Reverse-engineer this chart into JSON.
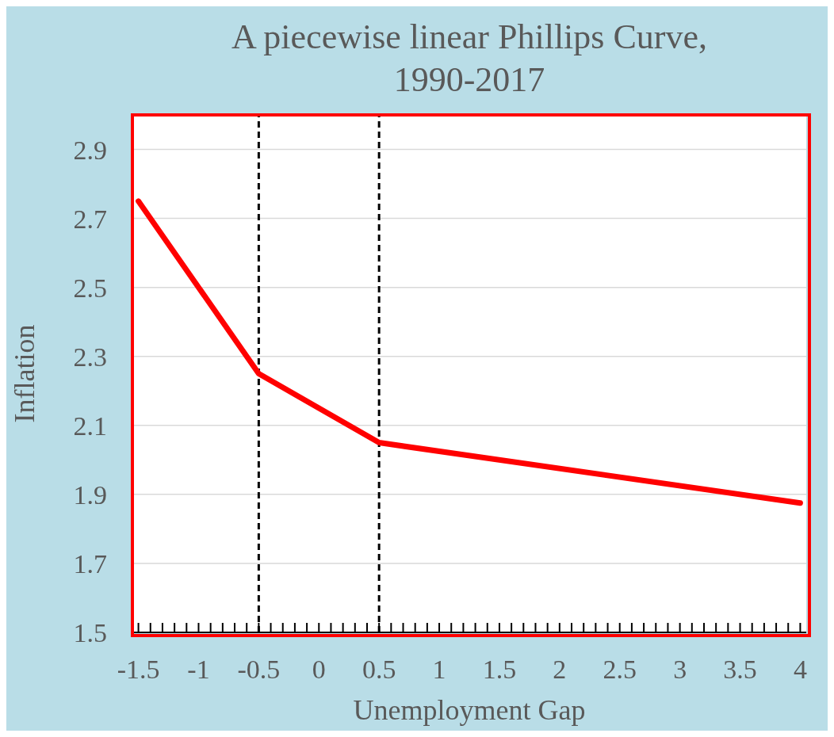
{
  "chart_data": {
    "type": "line",
    "title": "A piecewise linear Phillips Curve,\n1990-2017",
    "xlabel": "Unemployment Gap",
    "ylabel": "Inflation",
    "x": [
      -1.5,
      -0.5,
      0.5,
      4
    ],
    "series": [
      {
        "color": "#ff0000",
        "values": [
          2.75,
          2.25,
          2.05,
          1.875
        ]
      }
    ],
    "xlim": [
      -1.55,
      4.05
    ],
    "xticks": [
      -1.5,
      {
        "value": -1.4,
        "label": null
      },
      {
        "value": -1.3,
        "label": null
      },
      {
        "value": -1.2,
        "label": null
      },
      {
        "value": -1.1,
        "label": null
      },
      -1,
      {
        "value": -0.9,
        "label": null
      },
      {
        "value": -0.8,
        "label": null
      },
      {
        "value": -0.7,
        "label": null
      },
      {
        "value": -0.6,
        "label": null
      },
      -0.5,
      {
        "value": -0.4,
        "label": null
      },
      {
        "value": -0.3,
        "label": null
      },
      {
        "value": -0.2,
        "label": null
      },
      {
        "value": -0.1,
        "label": null
      },
      0,
      {
        "value": 0.1,
        "label": null
      },
      {
        "value": 0.2,
        "label": null
      },
      {
        "value": 0.3,
        "label": null
      },
      {
        "value": 0.4,
        "label": null
      },
      0.5,
      {
        "value": 0.6,
        "label": null
      },
      {
        "value": 0.7,
        "label": null
      },
      {
        "value": 0.8,
        "label": null
      },
      {
        "value": 0.9,
        "label": null
      },
      1,
      {
        "value": 1.1,
        "label": null
      },
      {
        "value": 1.2,
        "label": null
      },
      {
        "value": 1.3,
        "label": null
      },
      {
        "value": 1.4,
        "label": null
      },
      1.5,
      {
        "value": 1.6,
        "label": null
      },
      {
        "value": 1.7,
        "label": null
      },
      {
        "value": 1.8,
        "label": null
      },
      {
        "value": 1.9,
        "label": null
      },
      2,
      {
        "value": 2.1,
        "label": null
      },
      {
        "value": 2.2,
        "label": null
      },
      {
        "value": 2.3,
        "label": null
      },
      {
        "value": 2.4,
        "label": null
      },
      2.5,
      {
        "value": 2.6,
        "label": null
      },
      {
        "value": 2.7,
        "label": null
      },
      {
        "value": 2.8,
        "label": null
      },
      {
        "value": 2.9,
        "label": null
      },
      3,
      {
        "value": 3.1,
        "label": null
      },
      {
        "value": 3.2,
        "label": null
      },
      {
        "value": 3.3,
        "label": null
      },
      {
        "value": 3.4,
        "label": null
      },
      3.5,
      {
        "value": 3.6,
        "label": null
      },
      {
        "value": 3.7,
        "label": null
      },
      {
        "value": 3.8,
        "label": null
      },
      {
        "value": 3.9,
        "label": null
      },
      4
    ],
    "ylim": [
      1.5,
      3.0
    ],
    "yticks": [
      1.5,
      1.7,
      1.9,
      2.1,
      2.3,
      2.5,
      2.7,
      2.9
    ],
    "grid": "y",
    "legend": false,
    "marker": "none",
    "line_style": "solid",
    "ref_lines": [
      {
        "axis": "x",
        "value": -0.5,
        "color": "#000000",
        "line_style": "dashed"
      },
      {
        "axis": "x",
        "value": 0.5,
        "color": "#000000",
        "line_style": "dashed"
      }
    ]
  }
}
